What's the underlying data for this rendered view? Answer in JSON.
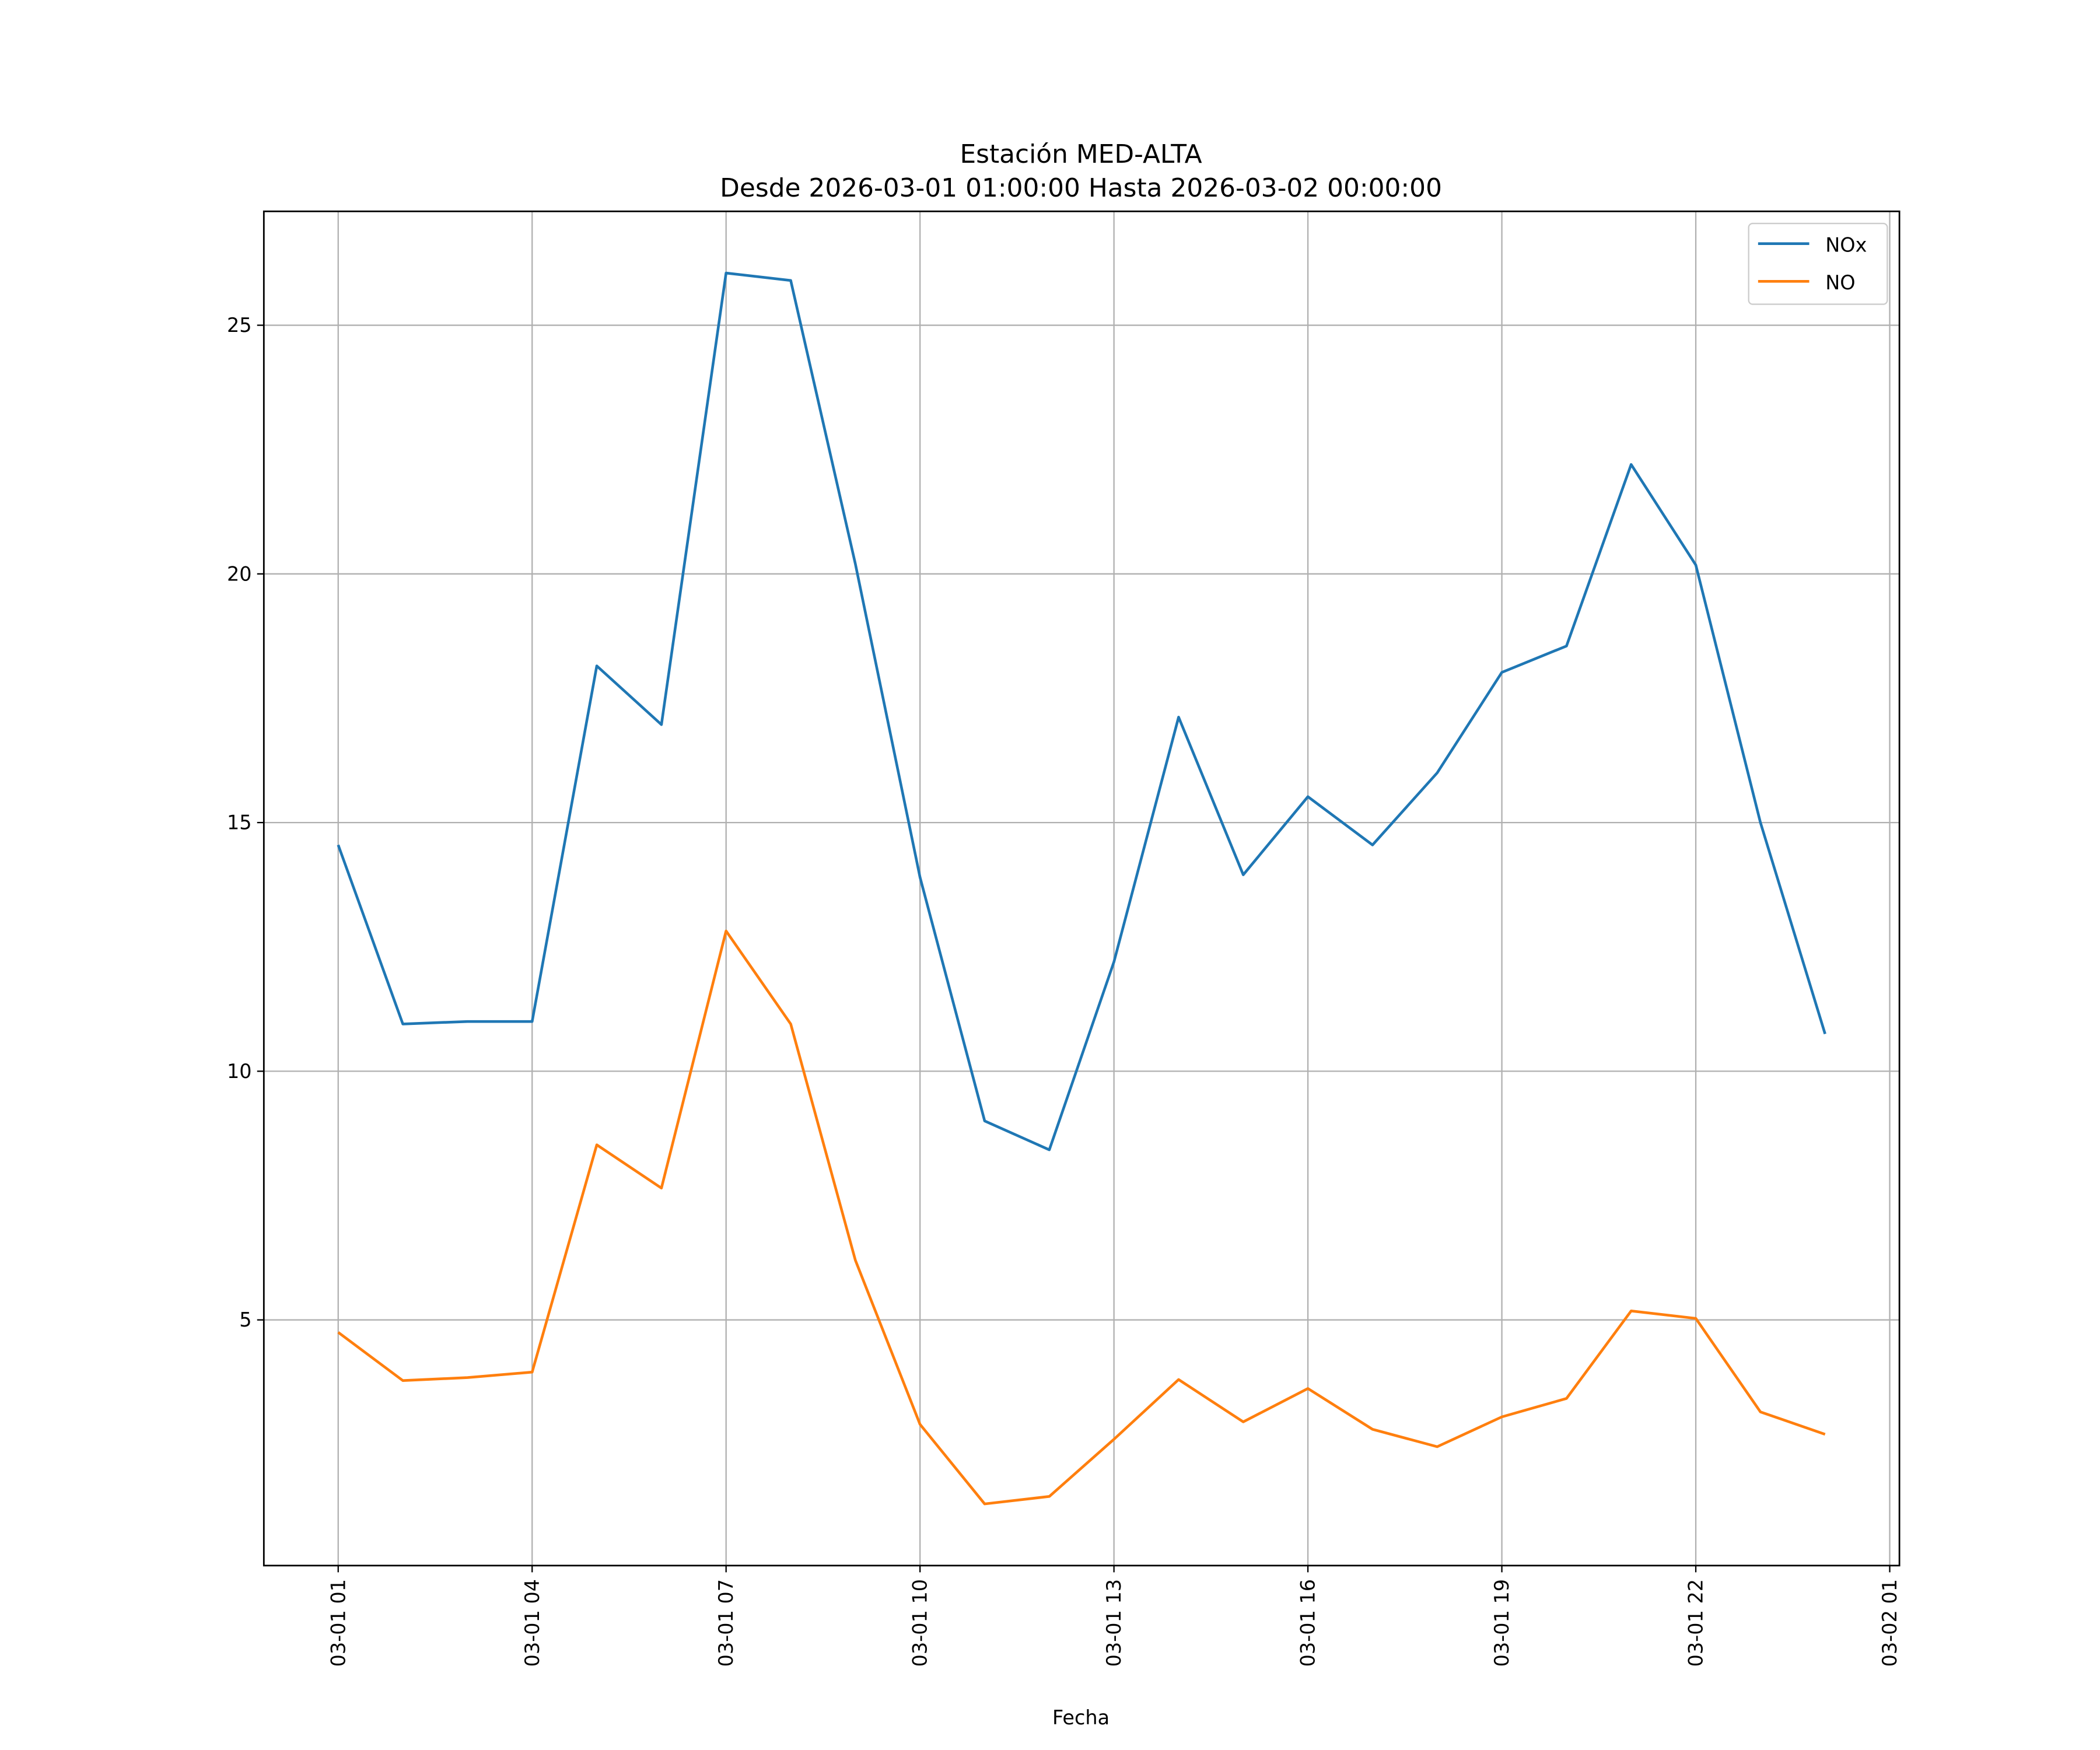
{
  "chart_data": {
    "type": "line",
    "title": [
      "Estación MED-ALTA",
      "Desde 2026-03-01 01:00:00 Hasta 2026-03-02 00:00:00"
    ],
    "xlabel": "Fecha",
    "ylabel": "",
    "x_hours": [
      1,
      2,
      3,
      4,
      5,
      6,
      7,
      8,
      9,
      10,
      11,
      12,
      13,
      14,
      15,
      16,
      17,
      18,
      19,
      20,
      21,
      22,
      23,
      24
    ],
    "xlim_hours": [
      -0.15,
      25.15
    ],
    "x_ticks_hours": [
      1,
      4,
      7,
      10,
      13,
      16,
      19,
      22,
      25
    ],
    "x_tick_labels": [
      "03-01 01",
      "03-01 04",
      "03-01 07",
      "03-01 10",
      "03-01 13",
      "03-01 16",
      "03-01 19",
      "03-01 22",
      "03-02 01"
    ],
    "ylim": [
      0.06,
      27.29
    ],
    "y_ticks": [
      5,
      10,
      15,
      20,
      25
    ],
    "y_tick_labels": [
      "5",
      "10",
      "15",
      "20",
      "25"
    ],
    "grid": true,
    "legend_position": "top-right",
    "series": [
      {
        "name": "NOx",
        "color": "#1f77b4",
        "values": [
          14.55,
          10.95,
          11.0,
          11.0,
          18.15,
          16.97,
          26.05,
          25.9,
          20.2,
          13.9,
          9.0,
          8.42,
          12.2,
          17.12,
          13.95,
          15.52,
          14.55,
          16.0,
          18.02,
          18.55,
          22.2,
          20.18,
          15.0,
          10.75
        ]
      },
      {
        "name": "NO",
        "color": "#ff7f0e",
        "values": [
          4.75,
          3.78,
          3.84,
          3.95,
          8.52,
          7.65,
          12.82,
          10.95,
          6.2,
          2.9,
          1.3,
          1.45,
          2.6,
          3.8,
          2.95,
          3.62,
          2.8,
          2.45,
          3.05,
          3.42,
          5.18,
          5.03,
          3.15,
          2.7
        ]
      }
    ]
  }
}
